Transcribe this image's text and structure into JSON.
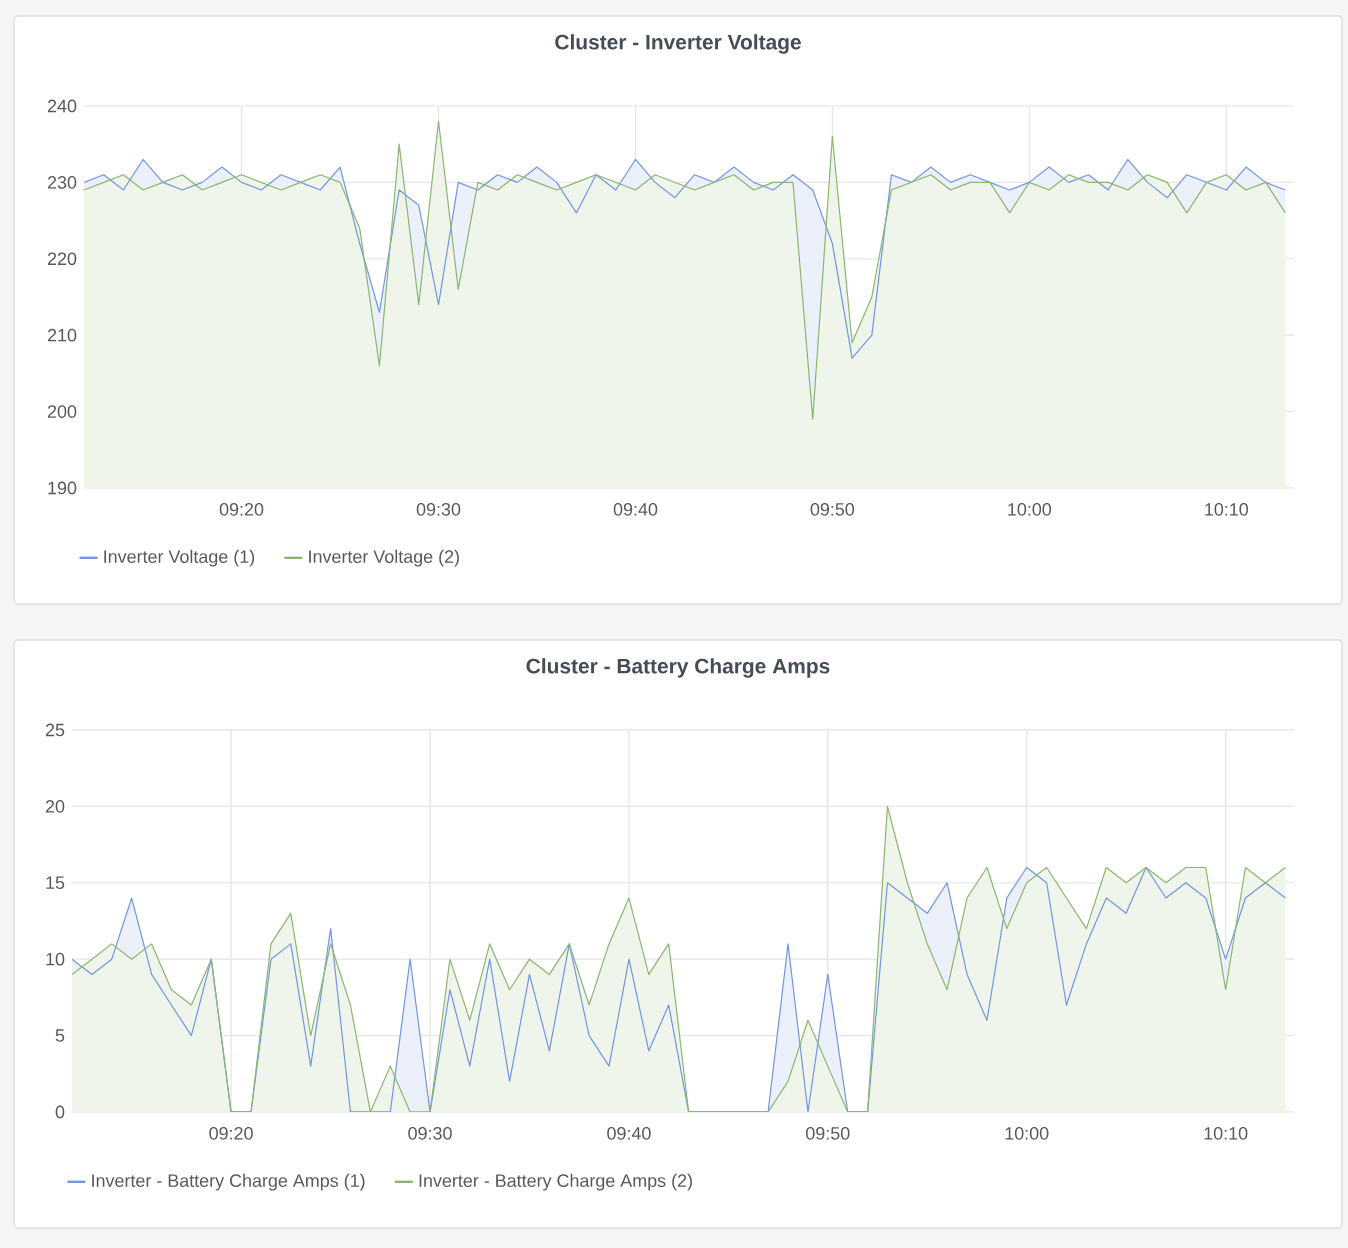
{
  "chart_data": [
    {
      "type": "area",
      "title": "Cluster - Inverter Voltage",
      "x": [
        9.2,
        9.2167,
        9.2333,
        9.25,
        9.2667,
        9.2833,
        9.3,
        9.3167,
        9.3333,
        9.35,
        9.3667,
        9.3833,
        9.4,
        9.4167,
        9.4333,
        9.45,
        9.4667,
        9.4833,
        9.5,
        9.5167,
        9.5333,
        9.55,
        9.5667,
        9.5833,
        9.6,
        9.6167,
        9.6333,
        9.65,
        9.6667,
        9.6833,
        9.7,
        9.7167,
        9.7333,
        9.75,
        9.7667,
        9.7833,
        9.8,
        9.8167,
        9.8333,
        9.85,
        9.8667,
        9.8833,
        9.9,
        9.9167,
        9.9333,
        9.95,
        9.9667,
        9.9833,
        10.0,
        10.0167,
        10.0333,
        10.05,
        10.0667,
        10.0833,
        10.1,
        10.1167,
        10.1333,
        10.15,
        10.1667,
        10.1833,
        10.2,
        10.2167
      ],
      "series": [
        {
          "name": "Inverter Voltage (1)",
          "color": "#7395e6",
          "values": [
            230,
            231,
            229,
            233,
            230,
            229,
            230,
            232,
            230,
            229,
            231,
            230,
            229,
            232,
            222,
            213,
            229,
            227,
            214,
            230,
            229,
            231,
            230,
            232,
            230,
            226,
            231,
            229,
            233,
            230,
            228,
            231,
            230,
            232,
            230,
            229,
            231,
            229,
            222,
            207,
            210,
            231,
            230,
            232,
            230,
            231,
            230,
            229,
            230,
            232,
            230,
            231,
            229,
            233,
            230,
            228,
            231,
            230,
            229,
            232,
            230,
            229
          ]
        },
        {
          "name": "Inverter Voltage (2)",
          "color": "#8ab66f",
          "values": [
            229,
            230,
            231,
            229,
            230,
            231,
            229,
            230,
            231,
            230,
            229,
            230,
            231,
            230,
            224,
            206,
            235,
            214,
            238,
            216,
            230,
            229,
            231,
            230,
            229,
            230,
            231,
            230,
            229,
            231,
            230,
            229,
            230,
            231,
            229,
            230,
            230,
            199,
            236,
            209,
            215,
            229,
            230,
            231,
            229,
            230,
            230,
            226,
            230,
            229,
            231,
            230,
            230,
            229,
            231,
            230,
            226,
            230,
            231,
            229,
            230,
            226
          ]
        }
      ],
      "xlim": [
        9.2,
        10.224
      ],
      "xticks": [
        {
          "value": 9.3333,
          "label": "09:20"
        },
        {
          "value": 9.5,
          "label": "09:30"
        },
        {
          "value": 9.6667,
          "label": "09:40"
        },
        {
          "value": 9.8333,
          "label": "09:50"
        },
        {
          "value": 10.0,
          "label": "10:00"
        },
        {
          "value": 10.1667,
          "label": "10:10"
        }
      ],
      "ylim": [
        190,
        240
      ],
      "yticks": [
        190,
        200,
        210,
        220,
        230,
        240
      ],
      "grid": true,
      "legend": "bottom"
    },
    {
      "type": "area",
      "title": "Cluster - Battery Charge Amps",
      "x": [
        9.2,
        9.2167,
        9.2333,
        9.25,
        9.2667,
        9.2833,
        9.3,
        9.3167,
        9.3333,
        9.35,
        9.3667,
        9.3833,
        9.4,
        9.4167,
        9.4333,
        9.45,
        9.4667,
        9.4833,
        9.5,
        9.5167,
        9.5333,
        9.55,
        9.5667,
        9.5833,
        9.6,
        9.6167,
        9.6333,
        9.65,
        9.6667,
        9.6833,
        9.7,
        9.7167,
        9.7333,
        9.75,
        9.7667,
        9.7833,
        9.8,
        9.8167,
        9.8333,
        9.85,
        9.8667,
        9.8833,
        9.9,
        9.9167,
        9.9333,
        9.95,
        9.9667,
        9.9833,
        10.0,
        10.0167,
        10.0333,
        10.05,
        10.0667,
        10.0833,
        10.1,
        10.1167,
        10.1333,
        10.15,
        10.1667,
        10.1833,
        10.2,
        10.2167
      ],
      "series": [
        {
          "name": "Inverter - Battery Charge Amps (1)",
          "color": "#7395e6",
          "values": [
            10,
            9,
            10,
            14,
            9,
            7,
            5,
            10,
            0,
            0,
            10,
            11,
            3,
            12,
            0,
            0,
            0,
            10,
            0,
            8,
            3,
            10,
            2,
            9,
            4,
            11,
            5,
            3,
            10,
            4,
            7,
            0,
            0,
            0,
            0,
            0,
            11,
            0,
            9,
            0,
            0,
            15,
            14,
            13,
            15,
            9,
            6,
            14,
            16,
            15,
            7,
            11,
            14,
            13,
            16,
            14,
            15,
            14,
            10,
            14,
            15,
            14
          ]
        },
        {
          "name": "Inverter - Battery Charge Amps (2)",
          "color": "#8ab66f",
          "values": [
            9,
            10,
            11,
            10,
            11,
            8,
            7,
            10,
            0,
            0,
            11,
            13,
            5,
            11,
            7,
            0,
            3,
            0,
            0,
            10,
            6,
            11,
            8,
            10,
            9,
            11,
            7,
            11,
            14,
            9,
            11,
            0,
            0,
            0,
            0,
            0,
            2,
            6,
            3,
            0,
            0,
            20,
            15,
            11,
            8,
            14,
            16,
            12,
            15,
            16,
            14,
            12,
            16,
            15,
            16,
            15,
            16,
            16,
            8,
            16,
            15,
            16
          ]
        }
      ],
      "xlim": [
        9.2,
        10.224
      ],
      "xticks": [
        {
          "value": 9.3333,
          "label": "09:20"
        },
        {
          "value": 9.5,
          "label": "09:30"
        },
        {
          "value": 9.6667,
          "label": "09:40"
        },
        {
          "value": 9.8333,
          "label": "09:50"
        },
        {
          "value": 10.0,
          "label": "10:00"
        },
        {
          "value": 10.1667,
          "label": "10:10"
        }
      ],
      "ylim": [
        0,
        25
      ],
      "yticks": [
        0,
        5,
        10,
        15,
        20,
        25
      ],
      "grid": true,
      "legend": "bottom"
    }
  ]
}
